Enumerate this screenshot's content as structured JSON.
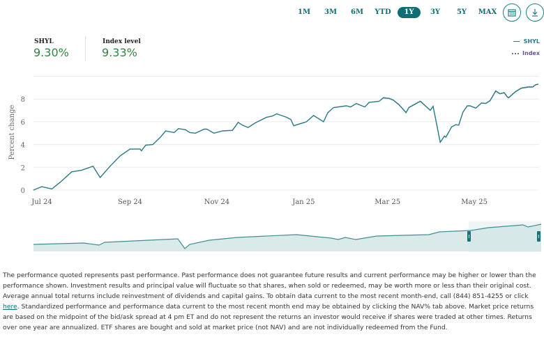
{
  "range_buttons": [
    "1M",
    "3M",
    "6M",
    "YTD",
    "1Y",
    "3Y",
    "5Y",
    "MAX"
  ],
  "active_range": "1Y",
  "icons": {
    "calendar": "calendar-icon",
    "download": "download-icon"
  },
  "stats": [
    {
      "label": "SHYL",
      "value": "9.30%"
    },
    {
      "label": "Index level",
      "value": "9.33%"
    }
  ],
  "colors": {
    "accent": "#0f6e74",
    "positive": "#2e8540",
    "shyl": "#2a7a86",
    "index": "#6a4fa0"
  },
  "chart_data": {
    "type": "line",
    "ylabel": "Percent change",
    "ylim": [
      0,
      10
    ],
    "yticks": [
      0,
      2,
      4,
      6,
      8
    ],
    "xticks": [
      "Jul 24",
      "Sep 24",
      "Nov 24",
      "Jan 25",
      "Mar 25",
      "May 25"
    ],
    "xtick_dates": [
      "2024-07-01",
      "2024-09-01",
      "2024-11-01",
      "2025-01-01",
      "2025-03-01",
      "2025-05-01"
    ],
    "grid": true,
    "legend": "top-right",
    "x": [
      "2024-06-25",
      "2024-07-01",
      "2024-07-08",
      "2024-07-14",
      "2024-07-22",
      "2024-07-29",
      "2024-08-06",
      "2024-08-11",
      "2024-08-18",
      "2024-08-25",
      "2024-09-01",
      "2024-09-08",
      "2024-09-09",
      "2024-09-12",
      "2024-09-17",
      "2024-09-22",
      "2024-09-26",
      "2024-10-02",
      "2024-10-05",
      "2024-10-10",
      "2024-10-13",
      "2024-10-17",
      "2024-10-23",
      "2024-10-25",
      "2024-10-30",
      "2024-11-05",
      "2024-11-12",
      "2024-11-16",
      "2024-11-19",
      "2024-11-23",
      "2024-11-28",
      "2024-12-06",
      "2024-12-10",
      "2024-12-13",
      "2024-12-20",
      "2024-12-23",
      "2024-12-25",
      "2025-01-03",
      "2025-01-08",
      "2025-01-15",
      "2025-01-18",
      "2025-01-22",
      "2025-01-31",
      "2025-02-03",
      "2025-02-07",
      "2025-02-13",
      "2025-02-16",
      "2025-02-23",
      "2025-02-26",
      "2025-03-02",
      "2025-03-05",
      "2025-03-09",
      "2025-03-14",
      "2025-03-16",
      "2025-03-24",
      "2025-03-31",
      "2025-04-02",
      "2025-04-07",
      "2025-04-10",
      "2025-04-11",
      "2025-04-15",
      "2025-04-18",
      "2025-04-20",
      "2025-04-23",
      "2025-04-26",
      "2025-04-28",
      "2025-05-02",
      "2025-05-06",
      "2025-05-09",
      "2025-05-12",
      "2025-05-16",
      "2025-05-19",
      "2025-05-22",
      "2025-05-24",
      "2025-05-25",
      "2025-05-30",
      "2025-06-03",
      "2025-06-08",
      "2025-06-11",
      "2025-06-13",
      "2025-06-15"
    ],
    "series": [
      {
        "name": "SHYL",
        "values": [
          0,
          0.3,
          0.1,
          0.7,
          1.6,
          1.75,
          2.1,
          1.1,
          2.1,
          3.0,
          3.6,
          3.6,
          3.45,
          3.95,
          4.0,
          4.6,
          5.2,
          5.05,
          5.4,
          5.3,
          5.05,
          5.0,
          5.35,
          5.35,
          5.0,
          5.2,
          5.25,
          5.95,
          5.7,
          5.5,
          5.9,
          6.4,
          6.5,
          6.7,
          6.4,
          6.2,
          5.65,
          6.0,
          6.55,
          6.0,
          6.8,
          7.25,
          7.4,
          7.3,
          7.6,
          7.3,
          7.7,
          7.8,
          8.1,
          8.05,
          7.9,
          7.5,
          6.8,
          7.25,
          7.8,
          7.0,
          7.35,
          4.2,
          4.75,
          4.65,
          5.55,
          5.75,
          5.7,
          6.85,
          7.4,
          7.4,
          7.2,
          7.65,
          7.6,
          7.85,
          8.7,
          8.45,
          8.55,
          8.2,
          8.1,
          8.65,
          8.95,
          9.05,
          9.05,
          9.25,
          9.3
        ]
      },
      {
        "name": "Index",
        "values": [
          0,
          0.3,
          0.1,
          0.7,
          1.6,
          1.75,
          2.1,
          1.1,
          2.1,
          3.0,
          3.6,
          3.6,
          3.45,
          3.95,
          4.0,
          4.6,
          5.2,
          5.05,
          5.4,
          5.3,
          5.05,
          5.0,
          5.35,
          5.35,
          5.0,
          5.2,
          5.25,
          5.95,
          5.7,
          5.5,
          5.9,
          6.4,
          6.5,
          6.7,
          6.4,
          6.2,
          5.65,
          6.0,
          6.55,
          6.0,
          6.8,
          7.25,
          7.4,
          7.3,
          7.6,
          7.3,
          7.7,
          7.8,
          8.15,
          8.1,
          7.95,
          7.55,
          6.85,
          7.3,
          7.85,
          7.05,
          7.4,
          4.2,
          4.75,
          4.65,
          5.55,
          5.75,
          5.7,
          6.85,
          7.4,
          7.4,
          7.2,
          7.65,
          7.65,
          7.9,
          8.75,
          8.5,
          8.6,
          8.25,
          8.15,
          8.7,
          9.0,
          9.1,
          9.1,
          9.28,
          9.33
        ]
      }
    ]
  },
  "disclaimer": {
    "before_link": "The performance quoted represents past performance. Past performance does not guarantee future results and current performance may be higher or lower than the performance shown. Investment results and principal value will fluctuate so that shares, when sold or redeemed, may be worth more or less than their original cost. Average annual total returns include reinvestment of dividends and capital gains. To obtain data current to the most recent month-end, call (844) 851-4255 or click ",
    "link": "here",
    "after_link": ". Standardized performance and performance data current to the most recent month end may be obtained by clicking the NAV% tab above. Market price returns are based on the midpoint of the bid/ask spread at 4 pm ET and do not represent the returns an investor would receive if shares were traded at other times. Returns over one year are annualized. ETF shares are bought and sold at market price (not NAV) and are not individually redeemed from the Fund."
  }
}
